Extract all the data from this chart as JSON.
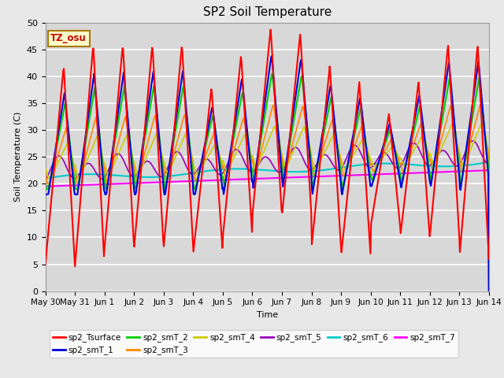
{
  "title": "SP2 Soil Temperature",
  "ylabel": "Soil Temperature (C)",
  "xlabel": "Time",
  "tz_label": "TZ_osu",
  "ylim": [
    0,
    50
  ],
  "plot_bg": "#d8d8d8",
  "fig_bg": "#e8e8e8",
  "grid_color": "#ffffff",
  "series_colors": {
    "sp2_Tsurface": "#ff0000",
    "sp2_smT_1": "#0000dd",
    "sp2_smT_2": "#00cc00",
    "sp2_smT_3": "#ff8800",
    "sp2_smT_4": "#cccc00",
    "sp2_smT_5": "#9900bb",
    "sp2_smT_6": "#00cccc",
    "sp2_smT_7": "#ff00ff"
  },
  "num_days": 15,
  "tick_labels": [
    "May 30",
    "May 31",
    "Jun 1",
    "Jun 2",
    "Jun 3",
    "Jun 4",
    "Jun 5",
    "Jun 6",
    "Jun 7",
    "Jun 8",
    "Jun 9",
    "Jun 10",
    "Jun 11",
    "Jun 12",
    "Jun 13",
    "Jun 14"
  ],
  "legend_entries": [
    "sp2_Tsurface",
    "sp2_smT_1",
    "sp2_smT_2",
    "sp2_smT_3",
    "sp2_smT_4",
    "sp2_smT_5",
    "sp2_smT_6",
    "sp2_smT_7"
  ]
}
